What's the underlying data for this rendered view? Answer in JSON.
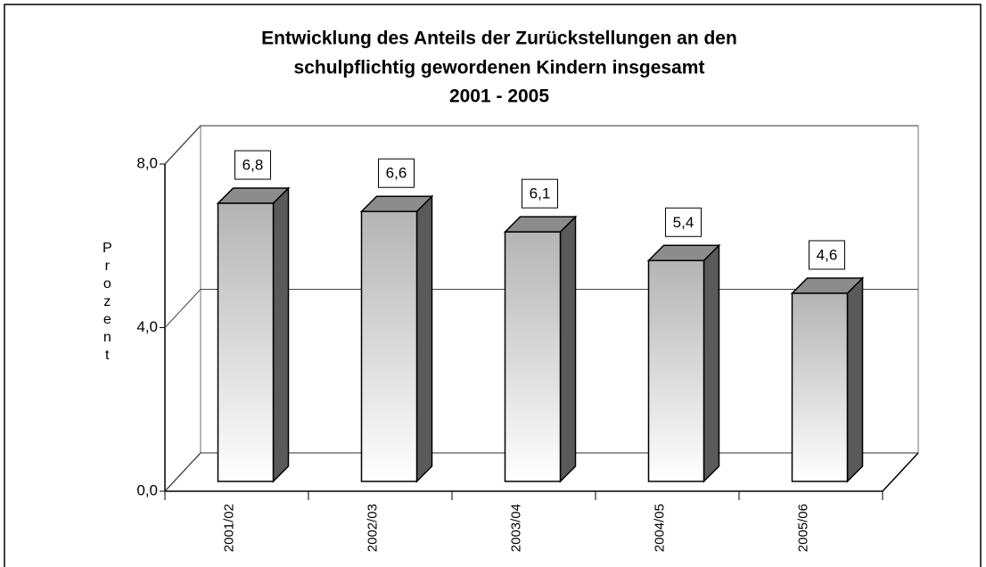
{
  "chart_data": {
    "type": "bar3d",
    "title": [
      "Entwicklung des Anteils der Zurückstellungen an den",
      "schulpflichtig gewordenen Kindern insgesamt",
      "2001 - 2005"
    ],
    "y_label": "Prozent",
    "categories": [
      "2001/02",
      "2002/03",
      "2003/04",
      "2004/05",
      "2005/06"
    ],
    "values": [
      6.8,
      6.6,
      6.1,
      5.4,
      4.6
    ],
    "value_labels": [
      "6,8",
      "6,6",
      "6,1",
      "5,4",
      "4,6"
    ],
    "ylim": [
      0,
      8
    ],
    "yticks": [
      {
        "value": 0,
        "label": "0,0"
      },
      {
        "value": 4,
        "label": "4,0"
      },
      {
        "value": 8,
        "label": "8,0"
      }
    ],
    "grid": true,
    "color": "#b4b4b4"
  }
}
